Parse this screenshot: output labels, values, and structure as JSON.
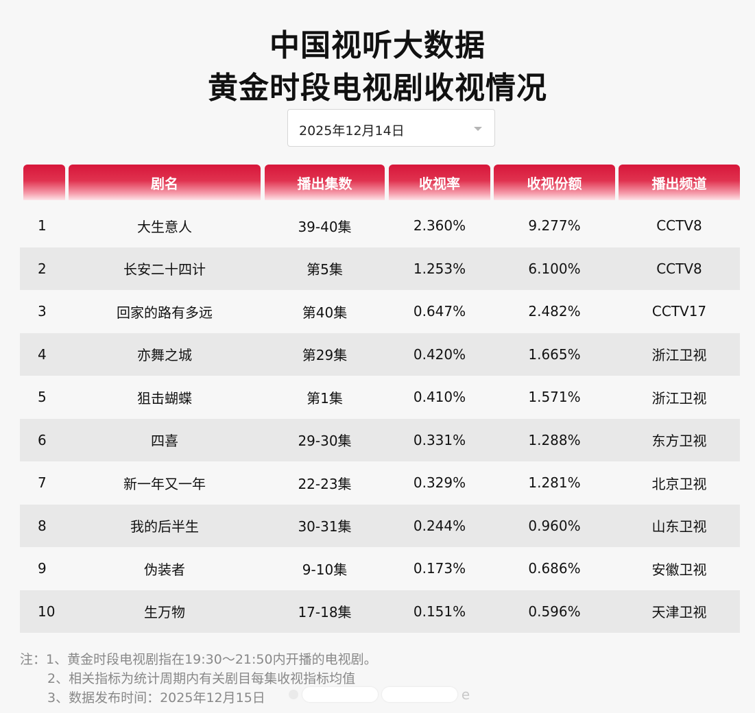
{
  "title_line1": "中国视听大数据",
  "title_line2": "黄金时段电视剧收视情况",
  "date_select": {
    "value": "2025年12月14日"
  },
  "table": {
    "headers": [
      "",
      "剧名",
      "播出集数",
      "收视率",
      "收视份额",
      "播出频道"
    ],
    "rows": [
      {
        "rank": "1",
        "name": "大生意人",
        "episodes": "39-40集",
        "rating": "2.360%",
        "share": "9.277%",
        "channel": "CCTV8"
      },
      {
        "rank": "2",
        "name": "长安二十四计",
        "episodes": "第5集",
        "rating": "1.253%",
        "share": "6.100%",
        "channel": "CCTV8"
      },
      {
        "rank": "3",
        "name": "回家的路有多远",
        "episodes": "第40集",
        "rating": "0.647%",
        "share": "2.482%",
        "channel": "CCTV17"
      },
      {
        "rank": "4",
        "name": "亦舞之城",
        "episodes": "第29集",
        "rating": "0.420%",
        "share": "1.665%",
        "channel": "浙江卫视"
      },
      {
        "rank": "5",
        "name": "狙击蝴蝶",
        "episodes": "第1集",
        "rating": "0.410%",
        "share": "1.571%",
        "channel": "浙江卫视"
      },
      {
        "rank": "6",
        "name": "四喜",
        "episodes": "29-30集",
        "rating": "0.331%",
        "share": "1.288%",
        "channel": "东方卫视"
      },
      {
        "rank": "7",
        "name": "新一年又一年",
        "episodes": "22-23集",
        "rating": "0.329%",
        "share": "1.281%",
        "channel": "北京卫视"
      },
      {
        "rank": "8",
        "name": "我的后半生",
        "episodes": "30-31集",
        "rating": "0.244%",
        "share": "0.960%",
        "channel": "山东卫视"
      },
      {
        "rank": "9",
        "name": "伪装者",
        "episodes": "9-10集",
        "rating": "0.173%",
        "share": "0.686%",
        "channel": "安徽卫视"
      },
      {
        "rank": "10",
        "name": "生万物",
        "episodes": "17-18集",
        "rating": "0.151%",
        "share": "0.596%",
        "channel": "天津卫视"
      }
    ]
  },
  "notes": [
    "注：1、黄金时段电视剧指在19:30～21:50内开播的电视剧。",
    "2、相关指标为统计周期内有关剧目每集收视指标均值",
    "3、数据发布时间：2025年12月15日"
  ],
  "colors": {
    "header_red": "#d7163a",
    "row_alt": "#e8e8e8",
    "background": "#f7f7f7"
  }
}
